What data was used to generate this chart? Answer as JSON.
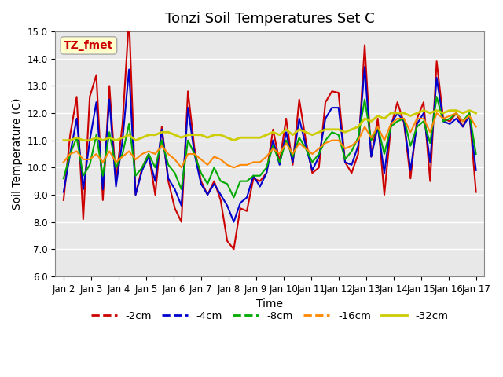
{
  "title": "Tonzi Soil Temperatures Set C",
  "xlabel": "Time",
  "ylabel": "Soil Temperature (C)",
  "ylim": [
    6.0,
    15.0
  ],
  "yticks": [
    6.0,
    7.0,
    8.0,
    9.0,
    10.0,
    11.0,
    12.0,
    13.0,
    14.0,
    15.0
  ],
  "xtick_labels": [
    "Jan 2",
    "Jan 3",
    "Jan 4",
    "Jan 5",
    "Jan 6",
    "Jan 7",
    "Jan 8",
    "Jan 9",
    "Jan 10",
    "Jan 11",
    "Jan 12",
    "Jan 13",
    "Jan 14",
    "Jan 15",
    "Jan 16",
    "Jan 17"
  ],
  "legend_entries": [
    "-2cm",
    "-4cm",
    "-8cm",
    "-16cm",
    "-32cm"
  ],
  "line_colors": [
    "#cc0000",
    "#0000cc",
    "#00aa00",
    "#ff8800",
    "#cccc00"
  ],
  "annotation_text": "TZ_fmet",
  "annotation_color": "#cc0000",
  "annotation_bg": "#ffffcc",
  "bg_color": "#e8e8e8",
  "plot_bg": "#e8e8e8",
  "grid_color": "#ffffff",
  "series_2cm": [
    8.8,
    11.2,
    12.6,
    8.1,
    12.6,
    13.4,
    8.8,
    13.0,
    9.5,
    11.6,
    15.5,
    9.0,
    10.0,
    10.5,
    9.0,
    11.5,
    9.5,
    8.5,
    8.0,
    12.8,
    10.7,
    9.5,
    9.0,
    9.5,
    8.8,
    7.3,
    7.0,
    8.5,
    8.4,
    9.6,
    9.5,
    9.8,
    11.4,
    10.2,
    11.8,
    10.1,
    12.5,
    11.0,
    9.8,
    10.0,
    12.4,
    12.8,
    12.75,
    10.2,
    9.8,
    10.5,
    14.5,
    10.4,
    11.8,
    9.0,
    11.5,
    12.4,
    11.65,
    9.6,
    11.8,
    12.4,
    9.5,
    13.9,
    11.8,
    11.7,
    12.0,
    11.5,
    12.0,
    9.1
  ],
  "series_4cm": [
    9.1,
    10.5,
    11.8,
    9.2,
    11.0,
    12.4,
    9.2,
    12.5,
    9.3,
    11.0,
    13.6,
    9.0,
    9.9,
    10.4,
    9.5,
    11.4,
    9.6,
    9.2,
    8.6,
    12.2,
    10.5,
    9.4,
    9.0,
    9.4,
    9.0,
    8.6,
    8.0,
    8.7,
    8.9,
    9.7,
    9.3,
    9.8,
    11.0,
    10.1,
    11.3,
    10.2,
    11.8,
    10.8,
    9.9,
    10.4,
    11.8,
    12.2,
    12.2,
    10.2,
    10.1,
    10.8,
    13.7,
    10.4,
    11.5,
    9.8,
    11.6,
    12.0,
    11.7,
    9.9,
    11.6,
    12.0,
    10.2,
    13.3,
    11.7,
    11.6,
    11.8,
    11.5,
    11.9,
    9.9
  ],
  "series_8cm": [
    9.6,
    10.5,
    11.1,
    9.7,
    10.1,
    11.2,
    9.7,
    11.3,
    10.0,
    10.5,
    11.6,
    9.7,
    10.0,
    10.5,
    10.0,
    11.0,
    10.1,
    9.8,
    9.2,
    11.0,
    10.5,
    9.8,
    9.4,
    10.0,
    9.5,
    9.4,
    8.9,
    9.5,
    9.5,
    9.7,
    9.7,
    10.0,
    10.8,
    10.2,
    11.0,
    10.4,
    11.1,
    10.7,
    10.2,
    10.5,
    11.0,
    11.3,
    11.2,
    10.3,
    10.6,
    11.1,
    12.5,
    11.0,
    11.5,
    10.5,
    11.5,
    11.7,
    11.8,
    10.8,
    11.5,
    11.7,
    10.9,
    12.6,
    11.7,
    11.8,
    12.0,
    11.7,
    12.0,
    10.5
  ],
  "series_16cm": [
    10.2,
    10.5,
    10.6,
    10.3,
    10.3,
    10.5,
    10.2,
    10.6,
    10.2,
    10.4,
    10.6,
    10.3,
    10.5,
    10.6,
    10.5,
    10.8,
    10.5,
    10.3,
    10.0,
    10.5,
    10.5,
    10.3,
    10.1,
    10.4,
    10.3,
    10.1,
    10.0,
    10.1,
    10.1,
    10.2,
    10.2,
    10.4,
    10.7,
    10.5,
    10.9,
    10.5,
    10.9,
    10.7,
    10.5,
    10.7,
    10.9,
    11.0,
    11.0,
    10.7,
    10.8,
    11.0,
    11.5,
    11.1,
    11.5,
    11.0,
    11.6,
    11.8,
    11.8,
    11.3,
    11.8,
    11.8,
    11.3,
    12.0,
    11.8,
    11.9,
    12.0,
    11.7,
    11.9,
    11.5
  ],
  "series_32cm": [
    11.0,
    11.0,
    11.1,
    11.0,
    11.0,
    11.1,
    11.0,
    11.1,
    11.0,
    11.1,
    11.2,
    11.0,
    11.1,
    11.2,
    11.2,
    11.3,
    11.3,
    11.2,
    11.1,
    11.2,
    11.2,
    11.2,
    11.1,
    11.2,
    11.2,
    11.1,
    11.0,
    11.1,
    11.1,
    11.1,
    11.1,
    11.2,
    11.3,
    11.2,
    11.4,
    11.2,
    11.4,
    11.3,
    11.2,
    11.3,
    11.4,
    11.4,
    11.4,
    11.3,
    11.4,
    11.5,
    11.8,
    11.7,
    11.9,
    11.8,
    12.0,
    12.0,
    12.0,
    11.9,
    12.0,
    12.1,
    12.0,
    12.1,
    12.0,
    12.1,
    12.1,
    12.0,
    12.1,
    12.0
  ]
}
